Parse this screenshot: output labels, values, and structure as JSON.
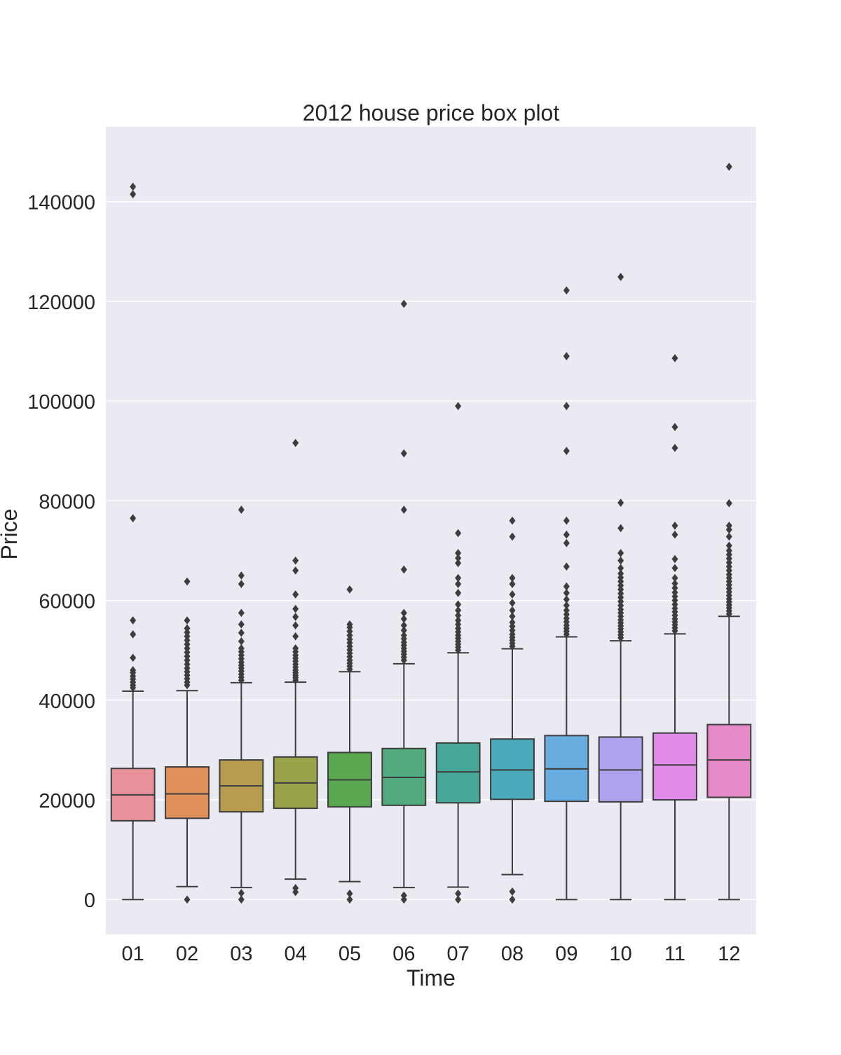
{
  "chart_data": {
    "type": "box",
    "title": "2012 house price box plot",
    "xlabel": "Time",
    "ylabel": "Price",
    "ylim": [
      -7000,
      155000
    ],
    "y_ticks": [
      0,
      20000,
      40000,
      60000,
      80000,
      100000,
      120000,
      140000
    ],
    "grid": true,
    "legend": "none",
    "categories": [
      "01",
      "02",
      "03",
      "04",
      "05",
      "06",
      "07",
      "08",
      "09",
      "10",
      "11",
      "12"
    ],
    "colors": [
      "#e8939c",
      "#e0915a",
      "#b79b4e",
      "#9aa24a",
      "#5aa84f",
      "#52ab7f",
      "#47a89a",
      "#4aaabb",
      "#68ace0",
      "#ada2ec",
      "#e08be8",
      "#e68bc7"
    ],
    "boxes": [
      {
        "category": "01",
        "whisker_low": 0,
        "q1": 15800,
        "median": 21000,
        "q3": 26300,
        "whisker_high": 41800,
        "outliers": [
          42500,
          43000,
          43600,
          44200,
          44800,
          45500,
          46000,
          48500,
          53200,
          56000,
          76500,
          141500,
          143000
        ]
      },
      {
        "category": "02",
        "whisker_low": 2600,
        "q1": 16300,
        "median": 21200,
        "q3": 26600,
        "whisker_high": 41900,
        "outliers": [
          0,
          43000,
          43600,
          44300,
          45000,
          45700,
          46400,
          47200,
          48000,
          48800,
          49600,
          50400,
          51200,
          52000,
          52800,
          53600,
          54400,
          56000,
          63800
        ]
      },
      {
        "category": "03",
        "whisker_low": 2400,
        "q1": 17600,
        "median": 22800,
        "q3": 28000,
        "whisker_high": 43500,
        "outliers": [
          0,
          1300,
          44000,
          44600,
          45200,
          45800,
          46400,
          47000,
          47600,
          48300,
          49000,
          49700,
          50400,
          51800,
          53500,
          55200,
          57500,
          63300,
          65000,
          78200
        ]
      },
      {
        "category": "04",
        "whisker_low": 4100,
        "q1": 18300,
        "median": 23400,
        "q3": 28600,
        "whisker_high": 43600,
        "outliers": [
          1500,
          2300,
          44000,
          44500,
          45000,
          45500,
          46000,
          46600,
          47200,
          47800,
          48400,
          49000,
          49700,
          50400,
          52800,
          55000,
          56700,
          58300,
          61200,
          66000,
          68000,
          91600
        ]
      },
      {
        "category": "05",
        "whisker_low": 3600,
        "q1": 18600,
        "median": 24000,
        "q3": 29500,
        "whisker_high": 45700,
        "outliers": [
          0,
          1200,
          46200,
          46800,
          47400,
          48000,
          48700,
          49400,
          50100,
          50800,
          51500,
          52200,
          53000,
          53800,
          54600,
          55200,
          62200
        ]
      },
      {
        "category": "06",
        "whisker_low": 2400,
        "q1": 18900,
        "median": 24500,
        "q3": 30300,
        "whisker_high": 47300,
        "outliers": [
          0,
          800,
          48000,
          48600,
          49200,
          49800,
          50400,
          51000,
          51600,
          52300,
          53000,
          54000,
          55000,
          56300,
          57500,
          66200,
          78200,
          89500,
          119500
        ]
      },
      {
        "category": "07",
        "whisker_low": 2500,
        "q1": 19400,
        "median": 25600,
        "q3": 31400,
        "whisker_high": 49500,
        "outliers": [
          0,
          1200,
          50000,
          50600,
          51200,
          51800,
          52400,
          53000,
          53700,
          54400,
          55200,
          56000,
          57000,
          58000,
          59200,
          61500,
          63300,
          64500,
          67500,
          68500,
          69500,
          73500,
          99000
        ]
      },
      {
        "category": "08",
        "whisker_low": 5000,
        "q1": 20100,
        "median": 26000,
        "q3": 32200,
        "whisker_high": 50300,
        "outliers": [
          0,
          1600,
          50800,
          51400,
          52000,
          52600,
          53200,
          54000,
          54800,
          55600,
          56800,
          58000,
          59500,
          61200,
          63300,
          64500,
          72800,
          76000
        ]
      },
      {
        "category": "09",
        "whisker_low": 0,
        "q1": 19700,
        "median": 26200,
        "q3": 32900,
        "whisker_high": 52700,
        "outliers": [
          53200,
          53800,
          54400,
          55000,
          55700,
          56400,
          57200,
          58000,
          59000,
          60200,
          61500,
          62800,
          66800,
          71500,
          73200,
          76000,
          90000,
          99000,
          109000,
          122200
        ]
      },
      {
        "category": "10",
        "whisker_low": 0,
        "q1": 19600,
        "median": 26000,
        "q3": 32600,
        "whisker_high": 51900,
        "outliers": [
          52500,
          53100,
          53700,
          54300,
          54900,
          55500,
          56100,
          56800,
          57500,
          58200,
          59000,
          59800,
          60600,
          61400,
          62200,
          63000,
          63800,
          64600,
          65400,
          66500,
          68000,
          69500,
          74500,
          79600,
          124900
        ]
      },
      {
        "category": "11",
        "whisker_low": 0,
        "q1": 20000,
        "median": 27000,
        "q3": 33400,
        "whisker_high": 53300,
        "outliers": [
          53900,
          54500,
          55100,
          55700,
          56300,
          57000,
          57700,
          58400,
          59200,
          60000,
          60800,
          61600,
          62500,
          63400,
          64500,
          66500,
          68300,
          73200,
          75000,
          90600,
          94800,
          108600
        ]
      },
      {
        "category": "12",
        "whisker_low": 0,
        "q1": 20500,
        "median": 28000,
        "q3": 35100,
        "whisker_high": 56800,
        "outliers": [
          57300,
          57900,
          58500,
          59100,
          59700,
          60300,
          61000,
          61700,
          62400,
          63100,
          63800,
          64500,
          65200,
          66000,
          66800,
          67600,
          68400,
          69200,
          70000,
          71000,
          72800,
          74200,
          75000,
          79500,
          147000
        ]
      }
    ]
  }
}
